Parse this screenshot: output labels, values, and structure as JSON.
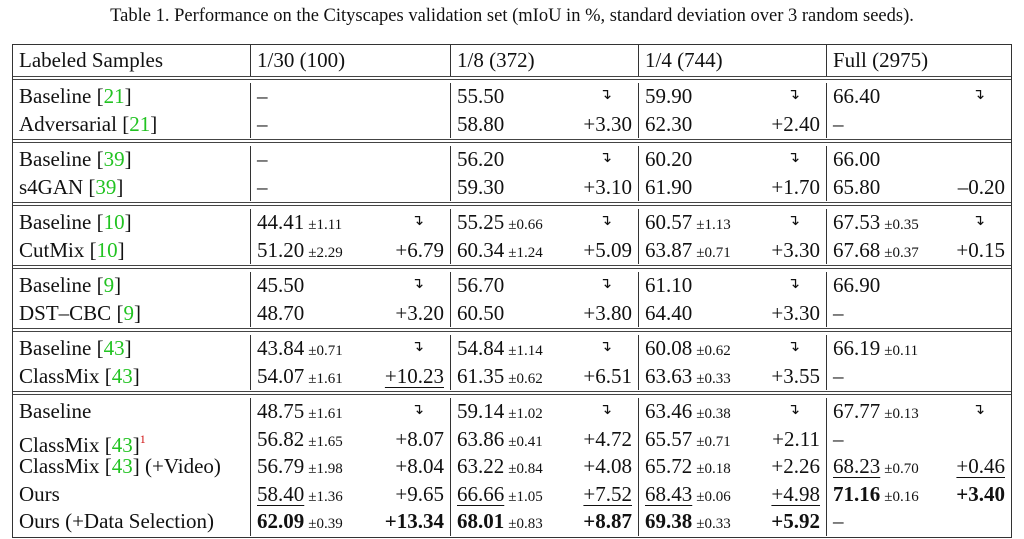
{
  "caption": "Table 1. Performance on the Cityscapes validation set (mIoU in %, standard deviation over 3 random seeds).",
  "header": [
    "Labeled Samples",
    "1/30 (100)",
    "1/8 (372)",
    "1/4 (744)",
    "Full (2975)"
  ],
  "colors": {
    "ref": "#22c322",
    "footnote": "#d01010"
  },
  "groups": [
    {
      "rows": [
        {
          "method": "Baseline",
          "ref": "21",
          "cells": [
            {
              "v": "–"
            },
            {
              "v": "55.50",
              "arrow": true
            },
            {
              "v": "59.90",
              "arrow": true
            },
            {
              "v": "66.40",
              "arrow": true
            }
          ]
        },
        {
          "method": "Adversarial",
          "ref": "21",
          "cells": [
            {
              "v": "–"
            },
            {
              "v": "58.80",
              "d": "+3.30"
            },
            {
              "v": "62.30",
              "d": "+2.40"
            },
            {
              "v": "–"
            }
          ]
        }
      ]
    },
    {
      "rows": [
        {
          "method": "Baseline",
          "ref": "39",
          "cells": [
            {
              "v": "–"
            },
            {
              "v": "56.20",
              "arrow": true
            },
            {
              "v": "60.20",
              "arrow": true
            },
            {
              "v": "66.00"
            }
          ]
        },
        {
          "method": "s4GAN",
          "ref": "39",
          "cells": [
            {
              "v": "–"
            },
            {
              "v": "59.30",
              "d": "+3.10"
            },
            {
              "v": "61.90",
              "d": "+1.70"
            },
            {
              "v": "65.80",
              "d": "–0.20"
            }
          ]
        }
      ]
    },
    {
      "rows": [
        {
          "method": "Baseline",
          "ref": "10",
          "cells": [
            {
              "v": "44.41",
              "std": "±1.11",
              "arrow": true
            },
            {
              "v": "55.25",
              "std": "±0.66",
              "arrow": true
            },
            {
              "v": "60.57",
              "std": "±1.13",
              "arrow": true
            },
            {
              "v": "67.53",
              "std": "±0.35",
              "arrow": true
            }
          ]
        },
        {
          "method": "CutMix",
          "ref": "10",
          "cells": [
            {
              "v": "51.20",
              "std": "±2.29",
              "d": "+6.79"
            },
            {
              "v": "60.34",
              "std": "±1.24",
              "d": "+5.09"
            },
            {
              "v": "63.87",
              "std": "±0.71",
              "d": "+3.30"
            },
            {
              "v": "67.68",
              "std": "±0.37",
              "d": "+0.15"
            }
          ]
        }
      ]
    },
    {
      "rows": [
        {
          "method": "Baseline",
          "ref": "9",
          "cells": [
            {
              "v": "45.50",
              "arrow": true
            },
            {
              "v": "56.70",
              "arrow": true
            },
            {
              "v": "61.10",
              "arrow": true
            },
            {
              "v": "66.90"
            }
          ]
        },
        {
          "method": "DST–CBC",
          "ref": "9",
          "cells": [
            {
              "v": "48.70",
              "d": "+3.20"
            },
            {
              "v": "60.50",
              "d": "+3.80"
            },
            {
              "v": "64.40",
              "d": "+3.30"
            },
            {
              "v": "–"
            }
          ]
        }
      ]
    },
    {
      "rows": [
        {
          "method": "Baseline",
          "ref": "43",
          "cells": [
            {
              "v": "43.84",
              "std": "±0.71",
              "arrow": true
            },
            {
              "v": "54.84",
              "std": "±1.14",
              "arrow": true
            },
            {
              "v": "60.08",
              "std": "±0.62",
              "arrow": true
            },
            {
              "v": "66.19",
              "std": "±0.11"
            }
          ]
        },
        {
          "method": "ClassMix",
          "ref": "43",
          "cells": [
            {
              "v": "54.07",
              "std": "±1.61",
              "d": "+10.23",
              "ds": "u"
            },
            {
              "v": "61.35",
              "std": "±0.62",
              "d": "+6.51"
            },
            {
              "v": "63.63",
              "std": "±0.33",
              "d": "+3.55"
            },
            {
              "v": "–"
            }
          ]
        }
      ]
    },
    {
      "rows": [
        {
          "method": "Baseline",
          "cells": [
            {
              "v": "48.75",
              "std": "±1.61",
              "arrow": true
            },
            {
              "v": "59.14",
              "std": "±1.02",
              "arrow": true
            },
            {
              "v": "63.46",
              "std": "±0.38",
              "arrow": true
            },
            {
              "v": "67.77",
              "std": "±0.13",
              "arrow": true
            }
          ]
        },
        {
          "method": "ClassMix",
          "ref": "43",
          "sup": "1",
          "cells": [
            {
              "v": "56.82",
              "std": "±1.65",
              "d": "+8.07"
            },
            {
              "v": "63.86",
              "std": "±0.41",
              "d": "+4.72"
            },
            {
              "v": "65.57",
              "std": "±0.71",
              "d": "+2.11"
            },
            {
              "v": "–"
            }
          ]
        },
        {
          "method": "ClassMix",
          "ref": "43",
          "suffix": "(+Video)",
          "cells": [
            {
              "v": "56.79",
              "std": "±1.98",
              "d": "+8.04"
            },
            {
              "v": "63.22",
              "std": "±0.84",
              "d": "+4.08"
            },
            {
              "v": "65.72",
              "std": "±0.18",
              "d": "+2.26"
            },
            {
              "v": "68.23",
              "vs": "u",
              "std": "±0.70",
              "d": "+0.46",
              "ds": "u"
            }
          ]
        },
        {
          "method": "Ours",
          "cells": [
            {
              "v": "58.40",
              "vs": "u",
              "std": "±1.36",
              "d": "+9.65"
            },
            {
              "v": "66.66",
              "vs": "u",
              "std": "±1.05",
              "d": "+7.52",
              "ds": "u"
            },
            {
              "v": "68.43",
              "vs": "u",
              "std": "±0.06",
              "d": "+4.98",
              "ds": "u"
            },
            {
              "v": "71.16",
              "vs": "b",
              "std": "±0.16",
              "d": "+3.40",
              "ds": "b"
            }
          ]
        },
        {
          "method": "Ours (+Data Selection)",
          "cells": [
            {
              "v": "62.09",
              "vs": "b",
              "std": "±0.39",
              "d": "+13.34",
              "ds": "b"
            },
            {
              "v": "68.01",
              "vs": "b",
              "std": "±0.83",
              "d": "+8.87",
              "ds": "b"
            },
            {
              "v": "69.38",
              "vs": "b",
              "std": "±0.33",
              "d": "+5.92",
              "ds": "b"
            },
            {
              "v": "–"
            }
          ]
        }
      ]
    }
  ]
}
